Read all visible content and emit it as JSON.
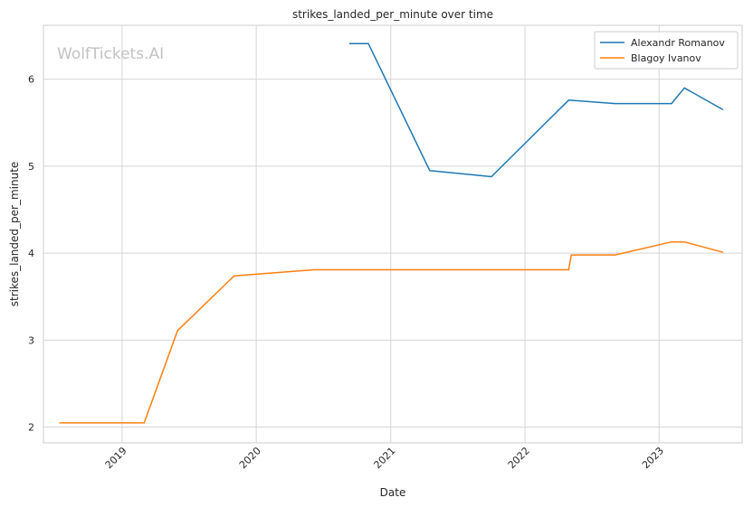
{
  "chart_data": {
    "type": "line",
    "title": "strikes_landed_per_minute over time",
    "xlabel": "Date",
    "ylabel": "strikes_landed_per_minute",
    "watermark": "WolfTickets.AI",
    "x_ticks": [
      "2019",
      "2020",
      "2021",
      "2022",
      "2023"
    ],
    "y_ticks": [
      "2",
      "3",
      "4",
      "5",
      "6"
    ],
    "xlim": [
      "2018-06-01",
      "2023-08-15"
    ],
    "ylim": [
      1.82,
      6.62
    ],
    "grid": true,
    "legend_position": "top-right",
    "series": [
      {
        "name": "Alexandr Romanov",
        "color": "#1f77b4",
        "points": [
          [
            "2020-09-10",
            6.41
          ],
          [
            "2020-11-01",
            6.41
          ],
          [
            "2021-04-17",
            4.95
          ],
          [
            "2021-10-02",
            4.88
          ],
          [
            "2022-04-30",
            5.76
          ],
          [
            "2022-09-03",
            5.72
          ],
          [
            "2023-02-04",
            5.72
          ],
          [
            "2023-03-11",
            5.9
          ],
          [
            "2023-06-24",
            5.65
          ]
        ]
      },
      {
        "name": "Blagoy Ivanov",
        "color": "#ff7f0e",
        "points": [
          [
            "2018-07-14",
            2.05
          ],
          [
            "2019-03-02",
            2.05
          ],
          [
            "2019-06-01",
            3.11
          ],
          [
            "2019-11-02",
            3.74
          ],
          [
            "2020-06-06",
            3.81
          ],
          [
            "2022-04-30",
            3.81
          ],
          [
            "2022-05-07",
            3.98
          ],
          [
            "2022-09-03",
            3.98
          ],
          [
            "2023-02-04",
            4.13
          ],
          [
            "2023-03-11",
            4.13
          ],
          [
            "2023-06-24",
            4.01
          ]
        ]
      }
    ]
  }
}
